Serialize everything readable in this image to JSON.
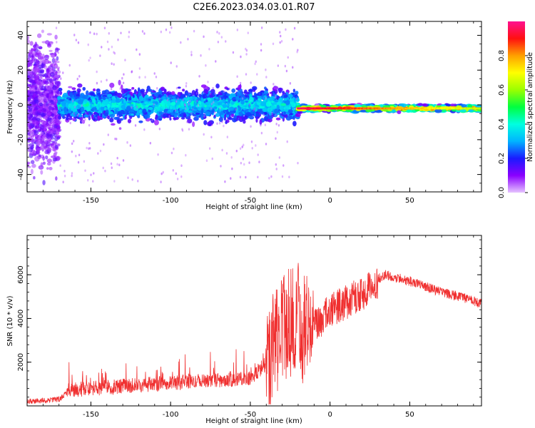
{
  "title": "C2E6.2023.034.03.01.R07",
  "colorbar": {
    "label": "Normalized spectral amplitude",
    "ticks": [
      "0.0",
      "0.2",
      "0.4",
      "0.6",
      "0.8"
    ],
    "tick_values": [
      0.0,
      0.2,
      0.4,
      0.6,
      0.8
    ],
    "range": [
      0,
      1
    ],
    "colormap": [
      "#e6c3ff",
      "#8a00ff",
      "#1a1aff",
      "#00b4ff",
      "#00ffe0",
      "#00ff40",
      "#9bff00",
      "#ffff00",
      "#ffa000",
      "#ff1010",
      "#ff1090"
    ]
  },
  "chart_data": [
    {
      "type": "heatmap",
      "xlabel": "Height of straight line (km)",
      "ylabel": "Frequency (Hz)",
      "xlim": [
        -190,
        95
      ],
      "ylim": [
        -50,
        48
      ],
      "xticks": [
        -150,
        -100,
        -50,
        0,
        50
      ],
      "xtick_labels": [
        "-150",
        "-100",
        "-50",
        "0",
        "50"
      ],
      "yticks": [
        -40,
        -20,
        0,
        20,
        40
      ],
      "ytick_labels": [
        "-40",
        "-20",
        "0",
        "20",
        "40"
      ],
      "bands": [
        {
          "x0": -190,
          "x1": -170,
          "center": 0,
          "halfwidth": 50,
          "amplitude": 0.08
        },
        {
          "x0": -170,
          "x1": -20,
          "center": 0,
          "halfwidth": 8,
          "amplitude": 0.3
        },
        {
          "x0": -20,
          "x1": 95,
          "center": -2,
          "halfwidth": 2,
          "amplitude": 0.75
        }
      ]
    },
    {
      "type": "line",
      "xlabel": "Height of straight line (km)",
      "ylabel": "SNR (10 * v/v)",
      "xlim": [
        -190,
        95
      ],
      "ylim": [
        0,
        7800
      ],
      "xticks": [
        -150,
        -100,
        -50,
        0,
        50
      ],
      "xtick_labels": [
        "-150",
        "-100",
        "-50",
        "0",
        "50"
      ],
      "yticks": [
        2000,
        4000,
        6000
      ],
      "ytick_labels": [
        "2000",
        "4000",
        "6000"
      ],
      "series": [
        {
          "color": "#f03030",
          "x": [
            -190,
            -170,
            -165,
            -150,
            -130,
            -110,
            -90,
            -70,
            -50,
            -40,
            -30,
            -20,
            -15,
            -10,
            0,
            10,
            20,
            30,
            35,
            50,
            70,
            95
          ],
          "y": [
            200,
            300,
            600,
            650,
            750,
            850,
            950,
            1050,
            1150,
            1800,
            3500,
            4000,
            3300,
            3800,
            4500,
            4900,
            5300,
            5800,
            6000,
            5700,
            5200,
            4700
          ]
        }
      ]
    }
  ]
}
